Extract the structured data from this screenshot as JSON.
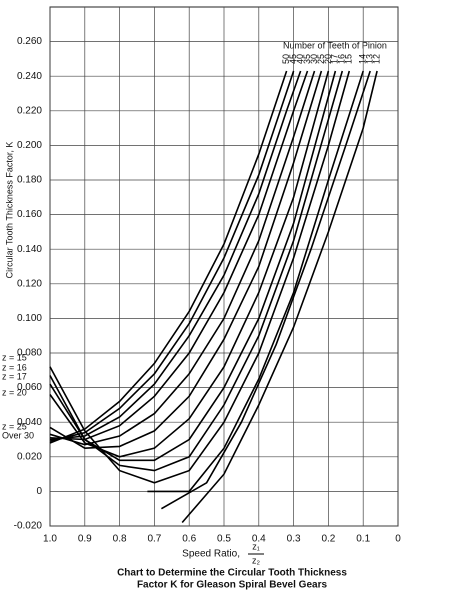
{
  "chart_data": {
    "type": "line",
    "title": [
      "Chart to Determine the Circular Tooth Thickness",
      "Factor K  for Gleason Spiral Bevel Gears"
    ],
    "x_label": "Speed Ratio,",
    "x_label_fraction": [
      "z₁",
      "z₂"
    ],
    "y_label": "Circular Tooth Thickness Factor, K",
    "legend_title": "Number of Teeth of Pinion",
    "annotations": [
      "z = 15",
      "z = 16",
      "z = 17",
      "z = 20",
      "z = 25",
      "Over 30"
    ],
    "xlim": [
      1,
      0
    ],
    "ylim": [
      -0.02,
      0.28
    ],
    "xticks": [
      {
        "value": 1,
        "label": "1.0"
      },
      0.9,
      0.8,
      0.7,
      0.6,
      0.5,
      0.4,
      0.3,
      0.2,
      0.1,
      0
    ],
    "yticks": [
      {
        "value": -0.02,
        "label": "-0.020"
      },
      0,
      {
        "value": 0.02,
        "label": "0.020"
      },
      {
        "value": 0.04,
        "label": "0.040"
      },
      {
        "value": 0.06,
        "label": "0.060"
      },
      {
        "value": 0.08,
        "label": "0.080"
      },
      {
        "value": 0.1,
        "label": "0.100"
      },
      {
        "value": 0.12,
        "label": "0.120"
      },
      {
        "value": 0.14,
        "label": "0.140"
      },
      {
        "value": 0.16,
        "label": "0.160"
      },
      {
        "value": 0.18,
        "label": "0.180"
      },
      {
        "value": 0.2,
        "label": "0.200"
      },
      {
        "value": 0.22,
        "label": "0.220"
      },
      {
        "value": 0.24,
        "label": "0.240"
      },
      {
        "value": 0.26,
        "label": "0.260"
      }
    ],
    "grid": true,
    "color": "#000000",
    "series": [
      {
        "name": "50",
        "x": [
          1,
          0.9,
          0.8,
          0.7,
          0.6,
          0.5,
          0.4,
          0.32
        ],
        "values": [
          0.028,
          0.036,
          0.052,
          0.074,
          0.104,
          0.143,
          0.195,
          0.243
        ]
      },
      {
        "name": "45",
        "x": [
          1,
          0.9,
          0.8,
          0.7,
          0.6,
          0.5,
          0.4,
          0.3
        ],
        "values": [
          0.029,
          0.034,
          0.048,
          0.068,
          0.097,
          0.135,
          0.183,
          0.243
        ]
      },
      {
        "name": "40",
        "x": [
          1,
          0.9,
          0.8,
          0.7,
          0.6,
          0.5,
          0.4,
          0.32,
          0.28
        ],
        "values": [
          0.03,
          0.032,
          0.043,
          0.062,
          0.09,
          0.125,
          0.172,
          0.22,
          0.243
        ]
      },
      {
        "name": "35",
        "x": [
          1,
          0.9,
          0.8,
          0.7,
          0.6,
          0.5,
          0.4,
          0.3,
          0.26
        ],
        "values": [
          0.031,
          0.03,
          0.038,
          0.055,
          0.08,
          0.115,
          0.16,
          0.22,
          0.243
        ]
      },
      {
        "name": "30",
        "x": [
          1,
          0.9,
          0.8,
          0.7,
          0.6,
          0.5,
          0.4,
          0.3,
          0.24
        ],
        "values": [
          0.033,
          0.027,
          0.032,
          0.045,
          0.068,
          0.1,
          0.145,
          0.205,
          0.243
        ]
      },
      {
        "name": "25",
        "x": [
          1,
          0.9,
          0.8,
          0.7,
          0.6,
          0.5,
          0.4,
          0.3,
          0.22
        ],
        "values": [
          0.037,
          0.025,
          0.026,
          0.035,
          0.055,
          0.088,
          0.13,
          0.19,
          0.243
        ]
      },
      {
        "name": "20",
        "x": [
          1,
          0.9,
          0.8,
          0.7,
          0.6,
          0.5,
          0.4,
          0.3,
          0.2
        ],
        "values": [
          0.056,
          0.028,
          0.02,
          0.025,
          0.042,
          0.072,
          0.115,
          0.17,
          0.243
        ]
      },
      {
        "name": "17",
        "x": [
          1,
          0.9,
          0.8,
          0.7,
          0.6,
          0.5,
          0.4,
          0.3,
          0.18
        ],
        "values": [
          0.062,
          0.03,
          0.018,
          0.018,
          0.03,
          0.06,
          0.1,
          0.155,
          0.243
        ]
      },
      {
        "name": "16",
        "x": [
          1,
          0.9,
          0.8,
          0.7,
          0.6,
          0.5,
          0.4,
          0.3,
          0.16
        ],
        "values": [
          0.067,
          0.03,
          0.015,
          0.012,
          0.02,
          0.05,
          0.09,
          0.145,
          0.243
        ]
      },
      {
        "name": "15",
        "x": [
          1,
          0.9,
          0.8,
          0.7,
          0.6,
          0.5,
          0.4,
          0.3,
          0.2,
          0.14
        ],
        "values": [
          0.072,
          0.035,
          0.012,
          0.005,
          0.012,
          0.04,
          0.08,
          0.135,
          0.2,
          0.243
        ]
      },
      {
        "name": "14",
        "x": [
          0.72,
          0.6,
          0.5,
          0.4,
          0.3,
          0.2,
          0.1
        ],
        "values": [
          0.0,
          0.0,
          0.025,
          0.065,
          0.115,
          0.18,
          0.243
        ]
      },
      {
        "name": "13",
        "x": [
          0.68,
          0.55,
          0.45,
          0.35,
          0.25,
          0.15,
          0.08
        ],
        "values": [
          -0.01,
          0.005,
          0.04,
          0.085,
          0.14,
          0.2,
          0.243
        ]
      },
      {
        "name": "12",
        "x": [
          0.62,
          0.5,
          0.4,
          0.3,
          0.2,
          0.1,
          0.06
        ],
        "values": [
          -0.018,
          0.01,
          0.05,
          0.095,
          0.15,
          0.21,
          0.243
        ]
      }
    ]
  }
}
